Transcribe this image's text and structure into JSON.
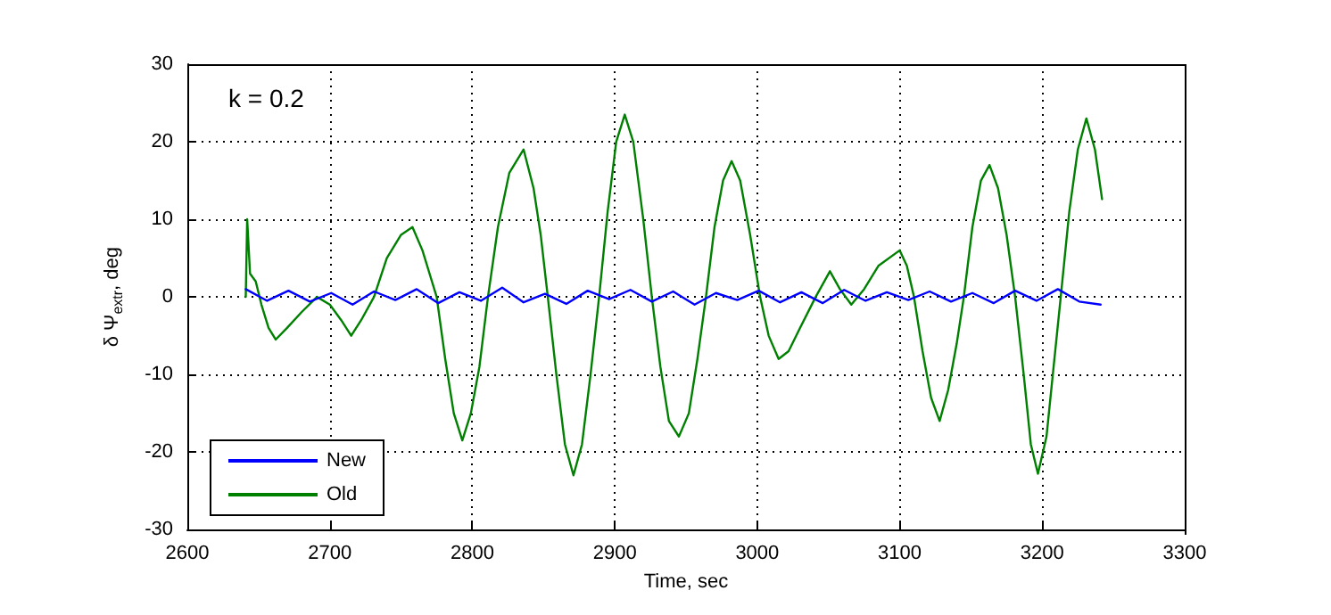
{
  "chart_data": {
    "type": "line",
    "xlabel": "Time, sec",
    "ylabel": "δ Ψ$_{extr}$, deg",
    "annotations": [
      "k = 0.2"
    ],
    "xlim": [
      2600,
      3300
    ],
    "xticks": [
      2600,
      2700,
      2800,
      2900,
      3000,
      3100,
      3200,
      3300
    ],
    "ylim": [
      -30,
      30
    ],
    "yticks": [
      -30,
      -20,
      -10,
      0,
      10,
      20,
      30
    ],
    "grid": true,
    "legend": "bottom left",
    "marker": "none",
    "line_style": "solid",
    "series": [
      {
        "name": "New",
        "color": "#0000ff",
        "x": [
          2641,
          2656,
          2671,
          2686,
          2701,
          2716,
          2731,
          2746,
          2761,
          2776,
          2791,
          2806,
          2821,
          2836,
          2851,
          2866,
          2881,
          2896,
          2911,
          2926,
          2941,
          2956,
          2971,
          2986,
          3001,
          3016,
          3031,
          3046,
          3061,
          3076,
          3091,
          3106,
          3121,
          3136,
          3151,
          3166,
          3181,
          3196,
          3211,
          3226,
          3241
        ],
        "values": [
          1,
          -0.5,
          0.8,
          -0.6,
          0.5,
          -1,
          0.7,
          -0.4,
          1,
          -0.8,
          0.6,
          -0.5,
          1.2,
          -0.7,
          0.4,
          -0.9,
          0.8,
          -0.3,
          0.9,
          -0.6,
          0.7,
          -1,
          0.5,
          -0.4,
          0.8,
          -0.7,
          0.6,
          -0.8,
          0.9,
          -0.5,
          0.6,
          -0.4,
          0.7,
          -0.6,
          0.5,
          -0.8,
          0.8,
          -0.5,
          1,
          -0.6,
          -1
        ]
      },
      {
        "name": "Old",
        "color": "#008000",
        "x": [
          2641,
          2642,
          2644,
          2648,
          2652,
          2657,
          2662,
          2670,
          2680,
          2691,
          2700,
          2708,
          2715,
          2722,
          2731,
          2740,
          2750,
          2758,
          2765,
          2770,
          2775,
          2781,
          2787,
          2793,
          2799,
          2805,
          2811,
          2818,
          2826,
          2836,
          2843,
          2848,
          2853,
          2859,
          2865,
          2871,
          2877,
          2883,
          2889,
          2895,
          2901,
          2907,
          2913,
          2920,
          2926,
          2932,
          2938,
          2945,
          2952,
          2958,
          2964,
          2970,
          2976,
          2982,
          2988,
          2995,
          3002,
          3008,
          3015,
          3022,
          3030,
          3041,
          3051,
          3058,
          3066,
          3075,
          3085,
          3100,
          3105,
          3110,
          3116,
          3122,
          3128,
          3134,
          3140,
          3145,
          3151,
          3157,
          3163,
          3169,
          3175,
          3181,
          3187,
          3192,
          3197,
          3203,
          3208,
          3213,
          3219,
          3225,
          3231,
          3237,
          3242
        ],
        "values": [
          0,
          10,
          3,
          2,
          -1,
          -4,
          -5.5,
          -4,
          -2,
          0,
          -1,
          -3,
          -5,
          -3,
          0,
          5,
          8,
          9,
          6,
          3,
          0,
          -8,
          -15,
          -18.5,
          -15,
          -9,
          0,
          9,
          16,
          19,
          14,
          8,
          0,
          -10,
          -19,
          -23,
          -19,
          -10,
          0,
          11,
          20,
          23.5,
          20,
          10,
          0,
          -9,
          -16,
          -18,
          -15,
          -8,
          0,
          9,
          15,
          17.5,
          15,
          8,
          0,
          -5,
          -8,
          -7,
          -4,
          0,
          3.3,
          1,
          -1,
          1,
          4,
          6,
          4,
          0,
          -7,
          -13,
          -16,
          -12,
          -6,
          0,
          9,
          15,
          17,
          14,
          8,
          0,
          -10,
          -19,
          -22.8,
          -18,
          -9,
          0,
          11,
          19,
          23,
          19,
          12.6
        ]
      }
    ]
  }
}
